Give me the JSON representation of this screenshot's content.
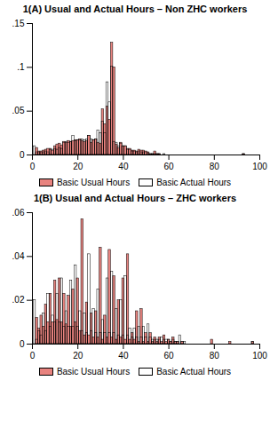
{
  "chart_data": [
    {
      "type": "bar",
      "title": "1(A) Usual and Actual Hours – Non ZHC workers",
      "x": [
        1,
        2,
        3,
        4,
        5,
        6,
        7,
        8,
        9,
        10,
        11,
        12,
        13,
        14,
        15,
        16,
        17,
        18,
        19,
        20,
        21,
        22,
        23,
        24,
        25,
        26,
        27,
        28,
        29,
        30,
        31,
        32,
        33,
        34,
        35,
        36,
        37,
        38,
        39,
        40,
        41,
        42,
        43,
        44,
        45,
        46,
        47,
        48,
        49,
        50,
        51,
        52,
        53,
        54,
        55,
        56,
        57,
        58,
        59,
        60,
        61,
        62,
        63,
        64,
        65,
        66,
        67,
        68,
        69,
        70,
        71,
        72,
        73,
        74,
        75,
        76,
        77,
        78,
        79,
        80,
        81,
        82,
        83,
        84,
        85,
        86,
        87,
        88,
        89,
        90,
        91,
        92,
        93,
        94,
        95,
        96,
        97,
        98,
        99,
        100
      ],
      "series": [
        {
          "name": "Basic Usual Hours",
          "color": "#e8837f",
          "values": [
            0.0,
            0.008,
            0.004,
            0.004,
            0.005,
            0.006,
            0.007,
            0.007,
            0.005,
            0.01,
            0.012,
            0.013,
            0.011,
            0.015,
            0.014,
            0.016,
            0.015,
            0.016,
            0.017,
            0.017,
            0.018,
            0.016,
            0.015,
            0.016,
            0.022,
            0.014,
            0.017,
            0.018,
            0.014,
            0.013,
            0.052,
            0.035,
            0.055,
            0.04,
            0.128,
            0.1,
            0.012,
            0.008,
            0.014,
            0.01,
            0.01,
            0.007,
            0.007,
            0.005,
            0.005,
            0.004,
            0.006,
            0.005,
            0.005,
            0.004,
            0.003,
            0.001,
            0.001,
            0.004,
            0.001,
            0.001,
            0.0,
            0.0,
            0.0,
            0.0,
            0.0,
            0.0,
            0.0,
            0.0,
            0.0,
            0.0,
            0.0,
            0.0,
            0.0,
            0.0,
            0.0,
            0.0,
            0.0,
            0.0,
            0.0,
            0.0,
            0.0,
            0.0,
            0.0,
            0.0,
            0.0,
            0.0,
            0.0,
            0.0,
            0.0,
            0.0,
            0.0,
            0.0,
            0.0,
            0.0,
            0.0,
            0.0,
            0.001,
            0.0,
            0.0,
            0.0,
            0.0,
            0.0,
            0.0,
            0.0
          ]
        },
        {
          "name": "Basic Actual Hours",
          "values": [
            0.01,
            0.003,
            0.003,
            0.003,
            0.003,
            0.004,
            0.003,
            0.006,
            0.006,
            0.007,
            0.006,
            0.008,
            0.007,
            0.014,
            0.015,
            0.014,
            0.015,
            0.022,
            0.016,
            0.017,
            0.017,
            0.018,
            0.017,
            0.018,
            0.022,
            0.018,
            0.017,
            0.018,
            0.028,
            0.025,
            0.038,
            0.025,
            0.083,
            0.06,
            0.101,
            0.015,
            0.014,
            0.01,
            0.013,
            0.01,
            0.01,
            0.006,
            0.006,
            0.004,
            0.004,
            0.003,
            0.004,
            0.003,
            0.003,
            0.003,
            0.002,
            0.001,
            0.001,
            0.001,
            0.001,
            0.001,
            0.0,
            0.001,
            0.0,
            0.0,
            0.0,
            0.0,
            0.0,
            0.0,
            0.0,
            0.0,
            0.0,
            0.0,
            0.0,
            0.0,
            0.0,
            0.0,
            0.0,
            0.0,
            0.0,
            0.0,
            0.0,
            0.0,
            0.0,
            0.0,
            0.0,
            0.0,
            0.0,
            0.0,
            0.0,
            0.0,
            0.0,
            0.0,
            0.0,
            0.0,
            0.0,
            0.0,
            0.001,
            0.0,
            0.0,
            0.0,
            0.0,
            0.0,
            0.0,
            0.0
          ]
        }
      ],
      "xlim": [
        0,
        100
      ],
      "xticks": [
        0,
        20,
        40,
        60,
        80,
        100
      ],
      "ylim": [
        0,
        0.15
      ],
      "yticks": [
        0,
        {
          "value": 0.05,
          "label": ".05"
        },
        {
          "value": 0.1,
          "label": ".1"
        },
        {
          "value": 0.15,
          "label": ".15"
        }
      ],
      "legend": "bottom"
    },
    {
      "type": "bar",
      "title": "1(B) Usual and Actual Hours – ZHC workers",
      "x": [
        1,
        2,
        3,
        4,
        5,
        6,
        7,
        8,
        9,
        10,
        11,
        12,
        13,
        14,
        15,
        16,
        17,
        18,
        19,
        20,
        21,
        22,
        23,
        24,
        25,
        26,
        27,
        28,
        29,
        30,
        31,
        32,
        33,
        34,
        35,
        36,
        37,
        38,
        39,
        40,
        41,
        42,
        43,
        44,
        45,
        46,
        47,
        48,
        49,
        50,
        51,
        52,
        53,
        54,
        55,
        56,
        57,
        58,
        59,
        60,
        61,
        62,
        63,
        64,
        65,
        66,
        67,
        68,
        69,
        70,
        71,
        72,
        73,
        74,
        75,
        76,
        77,
        78,
        79,
        80,
        81,
        82,
        83,
        84,
        85,
        86,
        87,
        88,
        89,
        90,
        91,
        92,
        93,
        94,
        95,
        96,
        97,
        98,
        99,
        100
      ],
      "series": [
        {
          "name": "Basic Usual Hours",
          "color": "#e8837f",
          "values": [
            0.0,
            0.012,
            0.007,
            0.013,
            0.008,
            0.018,
            0.01,
            0.023,
            0.01,
            0.029,
            0.011,
            0.03,
            0.01,
            0.023,
            0.009,
            0.022,
            0.008,
            0.025,
            0.01,
            0.03,
            0.006,
            0.057,
            0.004,
            0.019,
            0.004,
            0.014,
            0.003,
            0.015,
            0.003,
            0.044,
            0.002,
            0.013,
            0.003,
            0.043,
            0.003,
            0.031,
            0.002,
            0.02,
            0.003,
            0.03,
            0.002,
            0.041,
            0.002,
            0.005,
            0.002,
            0.015,
            0.001,
            0.016,
            0.001,
            0.005,
            0.001,
            0.005,
            0.001,
            0.003,
            0.001,
            0.003,
            0.001,
            0.004,
            0.001,
            0.002,
            0.001,
            0.003,
            0.001,
            0.001,
            0.0,
            0.001,
            0.0,
            0.0,
            0.0,
            0.0,
            0.0,
            0.0,
            0.0,
            0.0,
            0.0,
            0.0,
            0.0,
            0.0,
            0.002,
            0.0,
            0.0,
            0.0,
            0.0,
            0.0,
            0.0,
            0.0,
            0.001,
            0.0,
            0.0,
            0.0,
            0.0,
            0.0,
            0.0,
            0.0,
            0.0,
            0.0,
            0.001,
            0.0,
            0.0,
            0.0
          ]
        },
        {
          "name": "Basic Actual Hours",
          "values": [
            0.02,
            0.002,
            0.006,
            0.004,
            0.014,
            0.006,
            0.023,
            0.008,
            0.013,
            0.01,
            0.023,
            0.01,
            0.03,
            0.008,
            0.015,
            0.008,
            0.029,
            0.008,
            0.036,
            0.008,
            0.015,
            0.006,
            0.014,
            0.005,
            0.041,
            0.006,
            0.016,
            0.005,
            0.025,
            0.005,
            0.011,
            0.005,
            0.03,
            0.005,
            0.033,
            0.005,
            0.016,
            0.004,
            0.02,
            0.004,
            0.031,
            0.004,
            0.007,
            0.003,
            0.007,
            0.003,
            0.008,
            0.003,
            0.008,
            0.003,
            0.009,
            0.003,
            0.002,
            0.002,
            0.002,
            0.002,
            0.003,
            0.002,
            0.002,
            0.002,
            0.001,
            0.002,
            0.001,
            0.001,
            0.004,
            0.001,
            0.001,
            0.0,
            0.0,
            0.0,
            0.0,
            0.0,
            0.0,
            0.0,
            0.0,
            0.0,
            0.0,
            0.0,
            0.0,
            0.0,
            0.0,
            0.0,
            0.0,
            0.0,
            0.0,
            0.0,
            0.0,
            0.0,
            0.0,
            0.0,
            0.0,
            0.0,
            0.0,
            0.0,
            0.0,
            0.0,
            0.001,
            0.0,
            0.0,
            0.0
          ]
        }
      ],
      "xlim": [
        0,
        100
      ],
      "xticks": [
        0,
        20,
        40,
        60,
        80,
        100
      ],
      "ylim": [
        0,
        0.06
      ],
      "yticks": [
        0,
        {
          "value": 0.02,
          "label": ".02"
        },
        {
          "value": 0.04,
          "label": ".04"
        },
        {
          "value": 0.06,
          "label": ".06"
        }
      ],
      "legend": "bottom"
    }
  ]
}
